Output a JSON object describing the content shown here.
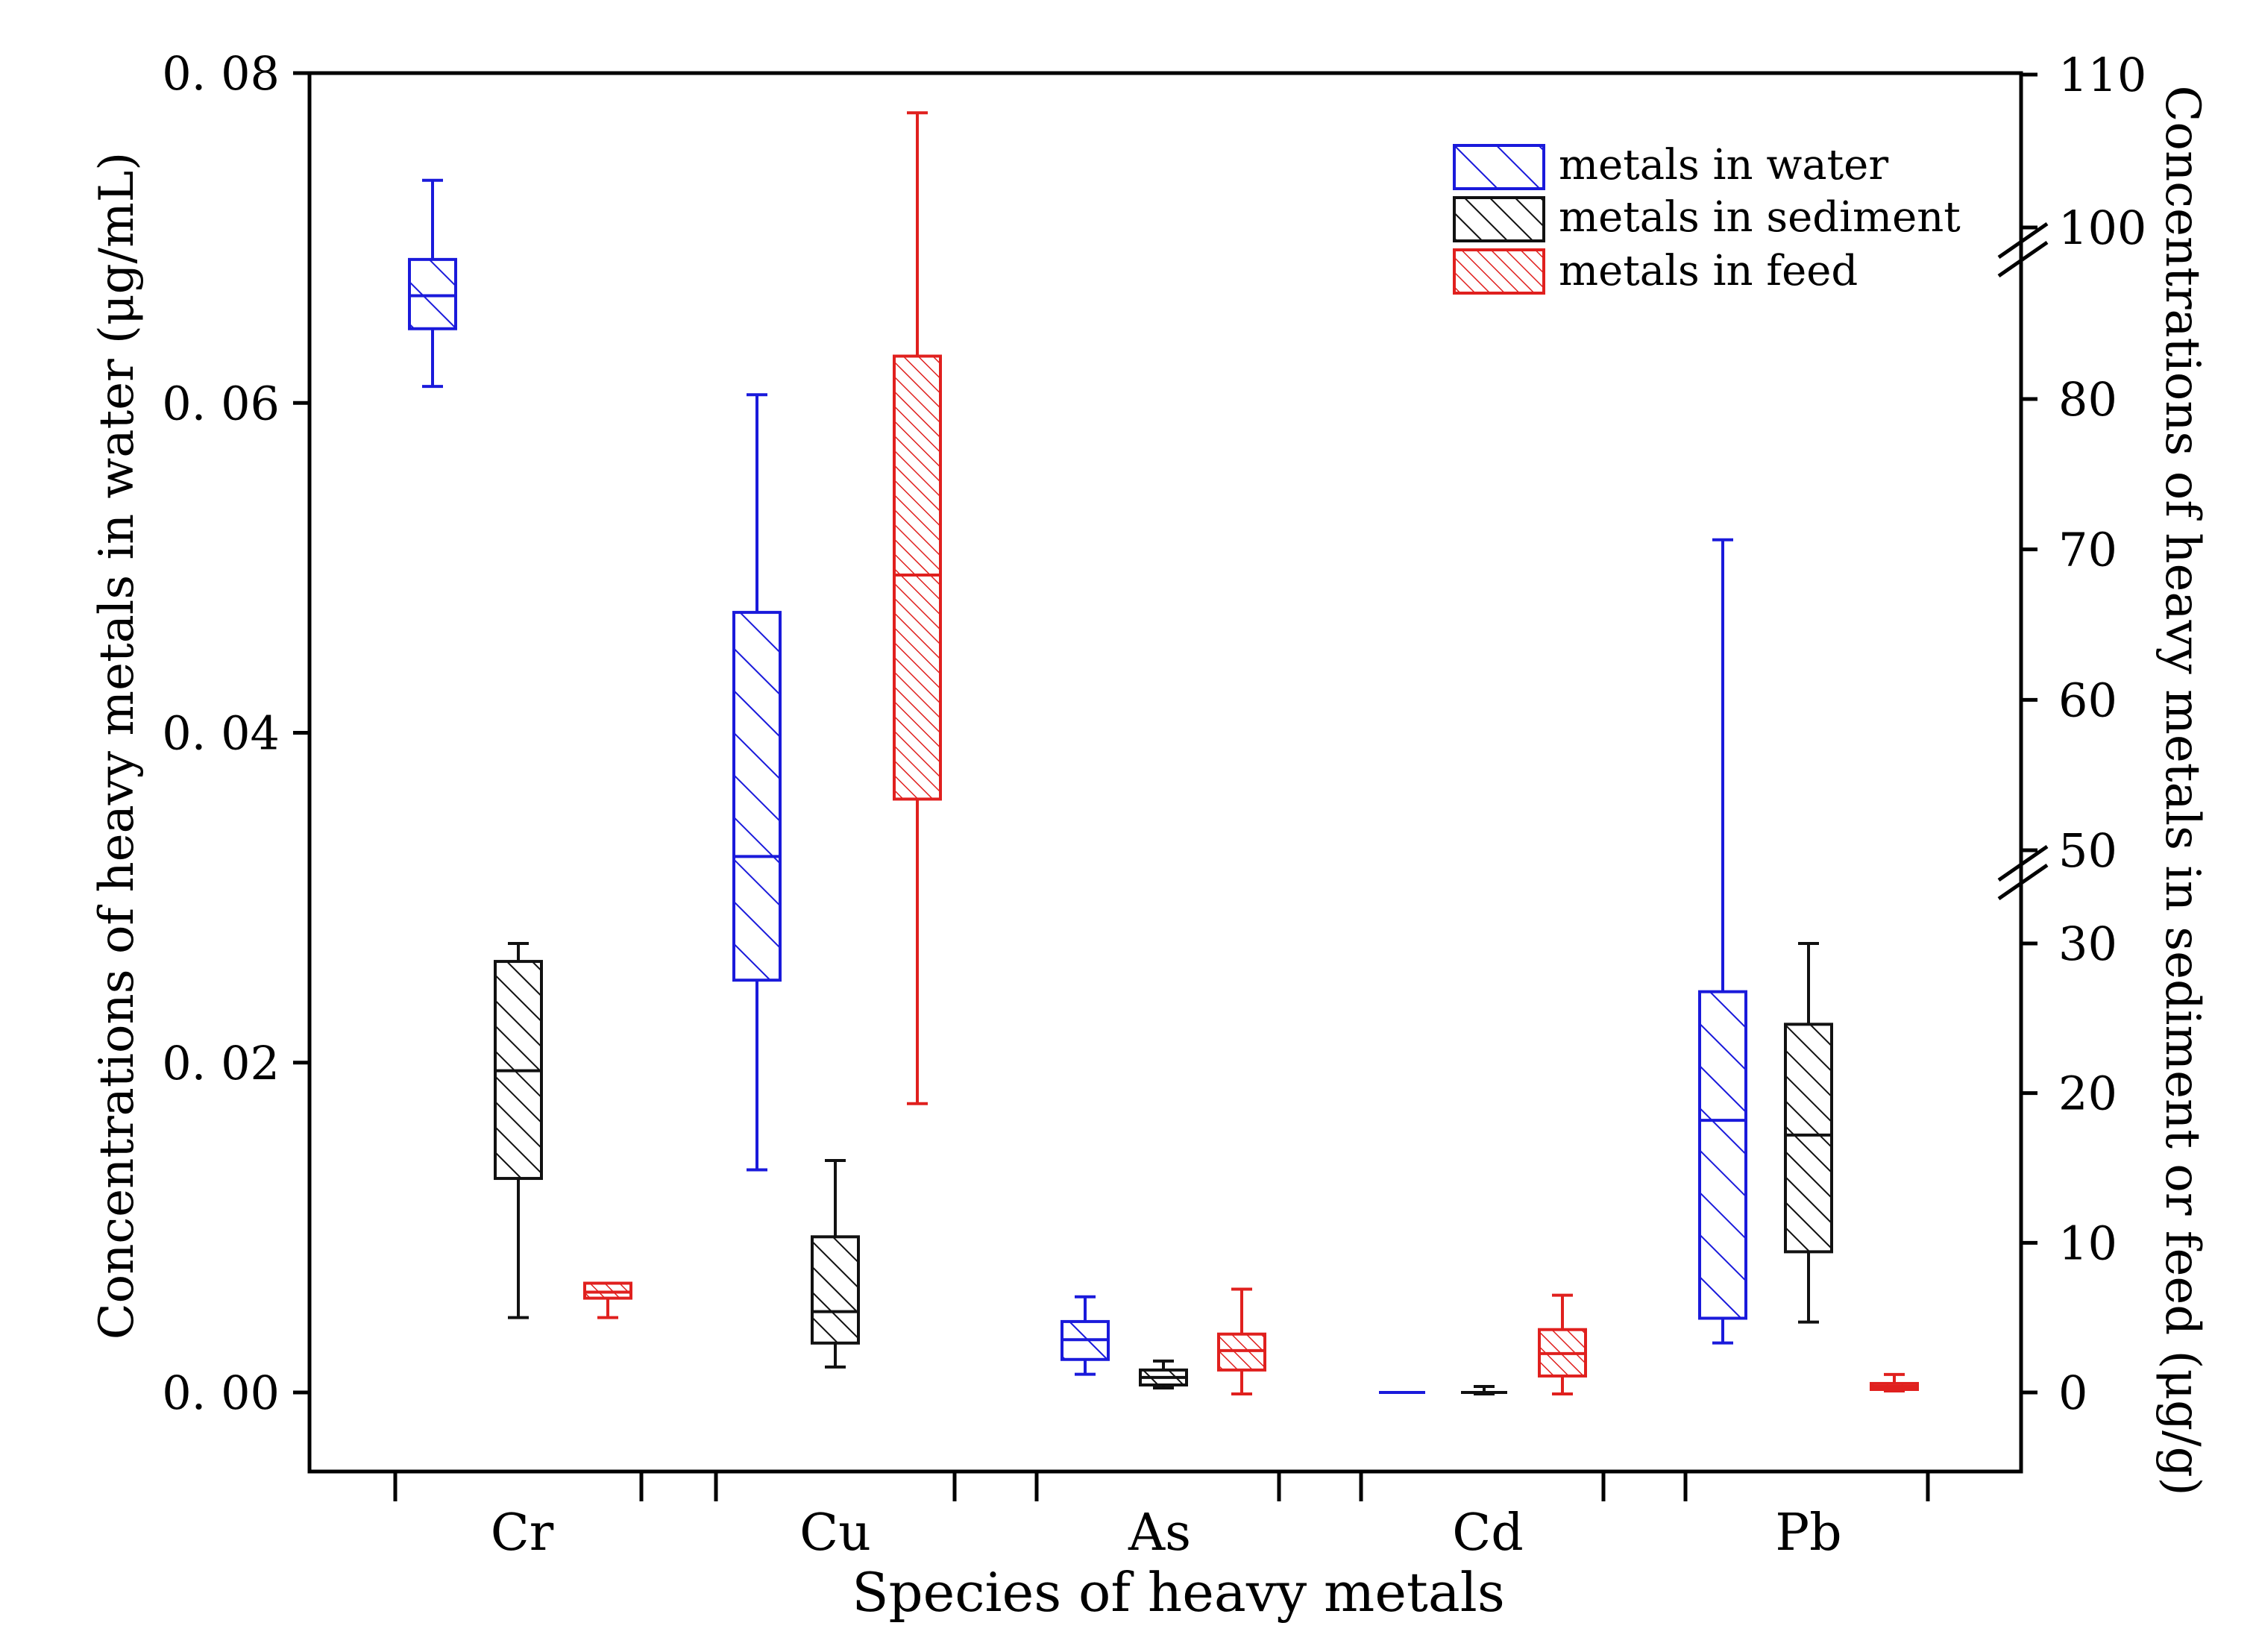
{
  "chart_data": {
    "type": "box",
    "title": "",
    "xlabel": "Species of heavy metals",
    "ylabel_left": "Concentrations of heavy metals in water (μg/mL)",
    "ylabel_right": "Concentrations of heavy metals in sediment or feed (μg/g)",
    "categories": [
      "Cr",
      "Cu",
      "As",
      "Cd",
      "Pb"
    ],
    "left_axis": {
      "ylim": [
        -0.005,
        0.08
      ],
      "ticks": [
        0.0,
        0.02,
        0.04,
        0.06,
        0.08
      ],
      "tick_labels": [
        "0. 00",
        "0. 02",
        "0. 04",
        "0. 06",
        "0. 08"
      ]
    },
    "right_axis": {
      "broken": true,
      "segments": [
        [
          0,
          30
        ],
        [
          50,
          100
        ],
        [
          100,
          110
        ]
      ],
      "ticks": [
        0,
        10,
        20,
        30,
        50,
        60,
        70,
        80,
        100,
        110
      ],
      "tick_labels": [
        "0",
        "10",
        "20",
        "30",
        "50",
        "60",
        "70",
        "80",
        "100",
        "110"
      ]
    },
    "legend": {
      "position": "top-right",
      "entries": [
        "metals in water",
        "metals in sediment",
        "metals in feed"
      ]
    },
    "colors": {
      "water": "#1a1adb",
      "sediment": "#111111",
      "feed": "#e0201e"
    },
    "series": [
      {
        "name": "metals in water",
        "axis": "left",
        "boxes": [
          {
            "category": "Cr",
            "min": 0.061,
            "q1": 0.0645,
            "median": 0.0665,
            "q3": 0.0687,
            "max": 0.0735
          },
          {
            "category": "Cu",
            "min": 0.0135,
            "q1": 0.025,
            "median": 0.0325,
            "q3": 0.0473,
            "max": 0.0605
          },
          {
            "category": "As",
            "min": 0.0011,
            "q1": 0.002,
            "median": 0.0032,
            "q3": 0.0043,
            "max": 0.0058
          },
          {
            "category": "Cd",
            "min": 0.0,
            "q1": 0.0,
            "median": 0.0,
            "q3": 0.0,
            "max": 0.0
          },
          {
            "category": "Pb",
            "min": 0.003,
            "q1": 0.0045,
            "median": 0.0165,
            "q3": 0.0243,
            "max": 0.0517
          }
        ]
      },
      {
        "name": "metals in sediment",
        "axis": "right",
        "boxes": [
          {
            "category": "Cr",
            "min": 5.0,
            "q1": 14.3,
            "median": 21.5,
            "q3": 28.8,
            "max": 31.0
          },
          {
            "category": "Cu",
            "min": 1.7,
            "q1": 3.3,
            "median": 5.4,
            "q3": 10.4,
            "max": 15.5
          },
          {
            "category": "As",
            "min": 0.3,
            "q1": 0.5,
            "median": 1.0,
            "q3": 1.5,
            "max": 2.1
          },
          {
            "category": "Cd",
            "min": -0.1,
            "q1": 0.0,
            "median": 0.0,
            "q3": 0.1,
            "max": 0.4
          },
          {
            "category": "Pb",
            "min": 4.7,
            "q1": 9.4,
            "median": 17.2,
            "q3": 24.6,
            "max": 30.3
          }
        ]
      },
      {
        "name": "metals in feed",
        "axis": "right",
        "boxes": [
          {
            "category": "Cr",
            "min": 5.0,
            "q1": 6.3,
            "median": 6.7,
            "q3": 7.3,
            "max": 7.3
          },
          {
            "category": "Cu",
            "min": 19.3,
            "q1": 53.4,
            "median": 68.3,
            "q3": 85.0,
            "max": 107.5
          },
          {
            "category": "As",
            "min": -0.1,
            "q1": 1.5,
            "median": 2.8,
            "q3": 3.9,
            "max": 6.9
          },
          {
            "category": "Cd",
            "min": -0.1,
            "q1": 1.1,
            "median": 2.6,
            "q3": 4.2,
            "max": 6.5
          },
          {
            "category": "Pb",
            "min": 0.1,
            "q1": 0.2,
            "median": 0.4,
            "q3": 0.6,
            "max": 1.2
          }
        ]
      }
    ]
  }
}
